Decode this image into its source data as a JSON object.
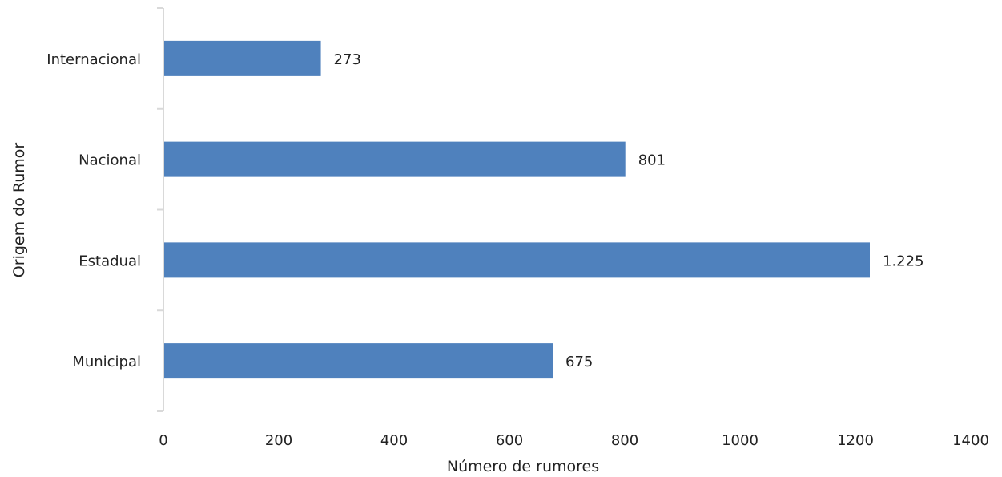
{
  "chart_data": {
    "type": "bar",
    "orientation": "horizontal",
    "categories": [
      "Internacional",
      "Nacional",
      "Estadual",
      "Municipal"
    ],
    "values": [
      273,
      801,
      1225,
      675
    ],
    "data_labels": [
      "273",
      "801",
      "1.225",
      "675"
    ],
    "xlabel": "Número de rumores",
    "ylabel": "Origem do Rumor",
    "xlim": [
      0,
      1400
    ],
    "xticks": [
      0,
      200,
      400,
      600,
      800,
      1000,
      1200,
      1400
    ],
    "xtick_labels": [
      "0",
      "200",
      "400",
      "600",
      "800",
      "1000",
      "1200",
      "1400"
    ],
    "grid": false,
    "legend": "none",
    "bar_color": "#4f81bd",
    "axis_color": "#d9d9d9"
  }
}
